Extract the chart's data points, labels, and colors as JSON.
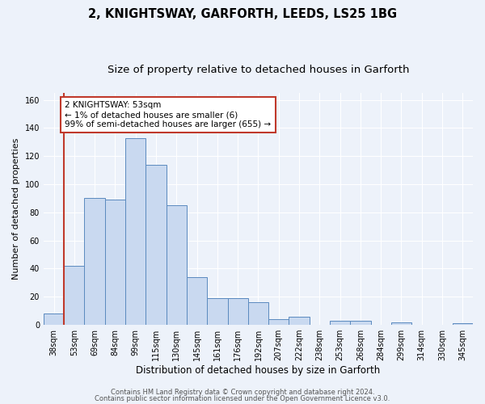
{
  "title": "2, KNIGHTSWAY, GARFORTH, LEEDS, LS25 1BG",
  "subtitle": "Size of property relative to detached houses in Garforth",
  "xlabel": "Distribution of detached houses by size in Garforth",
  "ylabel": "Number of detached properties",
  "categories": [
    "38sqm",
    "53sqm",
    "69sqm",
    "84sqm",
    "99sqm",
    "115sqm",
    "130sqm",
    "145sqm",
    "161sqm",
    "176sqm",
    "192sqm",
    "207sqm",
    "222sqm",
    "238sqm",
    "253sqm",
    "268sqm",
    "284sqm",
    "299sqm",
    "314sqm",
    "330sqm",
    "345sqm"
  ],
  "values": [
    8,
    42,
    90,
    89,
    133,
    114,
    85,
    34,
    19,
    19,
    16,
    4,
    6,
    0,
    3,
    3,
    0,
    2,
    0,
    0,
    1
  ],
  "bar_color": "#c9d9f0",
  "bar_edge_color": "#5b8abf",
  "vline_color": "#c0392b",
  "annotation_box_text": "2 KNIGHTSWAY: 53sqm\n← 1% of detached houses are smaller (6)\n99% of semi-detached houses are larger (655) →",
  "annotation_box_edge_color": "#c0392b",
  "annotation_box_facecolor": "#ffffff",
  "ylim": [
    0,
    165
  ],
  "yticks": [
    0,
    20,
    40,
    60,
    80,
    100,
    120,
    140,
    160
  ],
  "background_color": "#edf2fa",
  "grid_color": "#ffffff",
  "footer_line1": "Contains HM Land Registry data © Crown copyright and database right 2024.",
  "footer_line2": "Contains public sector information licensed under the Open Government Licence v3.0.",
  "title_fontsize": 10.5,
  "subtitle_fontsize": 9.5,
  "xlabel_fontsize": 8.5,
  "ylabel_fontsize": 8,
  "tick_fontsize": 7,
  "annotation_fontsize": 7.5,
  "footer_fontsize": 6
}
